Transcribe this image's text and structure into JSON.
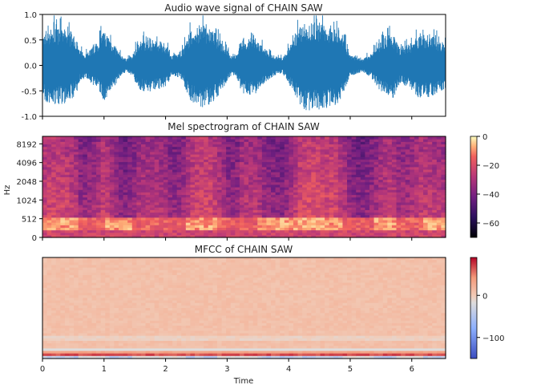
{
  "chart_data": [
    {
      "type": "line",
      "title": "Audio wave signal of CHAIN SAW",
      "xlabel": "",
      "ylabel": "",
      "xlim": [
        0,
        6.55
      ],
      "ylim": [
        -1.0,
        1.0
      ],
      "y_ticks": [
        "-1.0",
        "-0.5",
        "0.0",
        "0.5",
        "1.0"
      ],
      "y_tick_values": [
        -1.0,
        -0.5,
        0.0,
        0.5,
        1.0
      ],
      "series_color": "#1f77b4",
      "envelope": {
        "x": [
          0.0,
          0.05,
          0.2,
          0.4,
          0.55,
          0.6,
          0.7,
          0.9,
          1.0,
          1.1,
          1.25,
          1.35,
          1.45,
          1.55,
          1.65,
          1.8,
          2.0,
          2.1,
          2.25,
          2.4,
          2.55,
          2.75,
          2.95,
          3.05,
          3.15,
          3.25,
          3.45,
          3.6,
          3.75,
          3.9,
          4.05,
          4.2,
          4.3,
          4.45,
          4.6,
          4.75,
          4.9,
          5.0,
          5.2,
          5.35,
          5.5,
          5.6,
          5.7,
          5.8,
          5.95,
          6.1,
          6.3,
          6.45,
          6.55
        ],
        "amplitude": [
          0.55,
          0.7,
          0.75,
          0.7,
          0.55,
          0.3,
          0.25,
          0.45,
          0.7,
          0.55,
          0.25,
          0.12,
          0.18,
          0.45,
          0.5,
          0.5,
          0.42,
          0.2,
          0.25,
          0.65,
          0.8,
          0.75,
          0.4,
          0.2,
          0.22,
          0.55,
          0.55,
          0.35,
          0.2,
          0.15,
          0.45,
          0.8,
          0.85,
          0.85,
          0.8,
          0.78,
          0.55,
          0.2,
          0.12,
          0.25,
          0.5,
          0.6,
          0.62,
          0.35,
          0.4,
          0.6,
          0.6,
          0.5,
          0.45
        ]
      }
    },
    {
      "type": "heatmap",
      "title": "Mel spectrogram of CHAIN SAW",
      "xlabel": "",
      "ylabel": "Hz",
      "y_ticks": [
        "0",
        "512",
        "1024",
        "2048",
        "4096",
        "8192"
      ],
      "colorbar_ticks": [
        "0",
        "−20",
        "−40",
        "−60"
      ],
      "colorbar_values": [
        0,
        -20,
        -40,
        -60
      ],
      "colorbar_range": [
        -70,
        0
      ],
      "colormap": "magma",
      "bright_segments_x": [
        [
          0.0,
          0.55
        ],
        [
          1.0,
          1.45
        ],
        [
          2.3,
          2.85
        ],
        [
          3.5,
          4.2
        ],
        [
          4.2,
          4.9
        ],
        [
          5.35,
          5.75
        ],
        [
          6.2,
          6.55
        ]
      ]
    },
    {
      "type": "heatmap",
      "title": "MFCC of CHAIN SAW",
      "xlabel": "Time",
      "ylabel": "",
      "x_ticks": [
        "0",
        "1",
        "2",
        "3",
        "4",
        "5",
        "6"
      ],
      "x_tick_values": [
        0,
        1,
        2,
        3,
        4,
        5,
        6
      ],
      "colorbar_ticks": [
        "0",
        "−100"
      ],
      "colorbar_values": [
        0,
        -100
      ],
      "colorbar_range": [
        -150,
        90
      ],
      "colormap": "coolwarm"
    }
  ]
}
